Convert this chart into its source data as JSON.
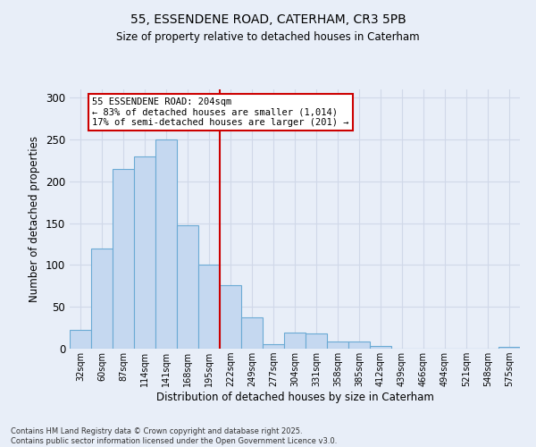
{
  "title_line1": "55, ESSENDENE ROAD, CATERHAM, CR3 5PB",
  "title_line2": "Size of property relative to detached houses in Caterham",
  "xlabel": "Distribution of detached houses by size in Caterham",
  "ylabel": "Number of detached properties",
  "categories": [
    "32sqm",
    "60sqm",
    "87sqm",
    "114sqm",
    "141sqm",
    "168sqm",
    "195sqm",
    "222sqm",
    "249sqm",
    "277sqm",
    "304sqm",
    "331sqm",
    "358sqm",
    "385sqm",
    "412sqm",
    "439sqm",
    "466sqm",
    "494sqm",
    "521sqm",
    "548sqm",
    "575sqm"
  ],
  "values": [
    22,
    120,
    215,
    230,
    250,
    148,
    100,
    76,
    37,
    5,
    19,
    18,
    9,
    9,
    3,
    0,
    0,
    0,
    0,
    0,
    2
  ],
  "bar_color": "#c5d8f0",
  "bar_edge_color": "#6aaad4",
  "grid_color": "#d0d8e8",
  "vline_color": "#cc0000",
  "annotation_text": "55 ESSENDENE ROAD: 204sqm\n← 83% of detached houses are smaller (1,014)\n17% of semi-detached houses are larger (201) →",
  "annotation_box_color": "#ffffff",
  "annotation_box_edge": "#cc0000",
  "footnote": "Contains HM Land Registry data © Crown copyright and database right 2025.\nContains public sector information licensed under the Open Government Licence v3.0.",
  "ylim": [
    0,
    310
  ],
  "background_color": "#e8eef8"
}
